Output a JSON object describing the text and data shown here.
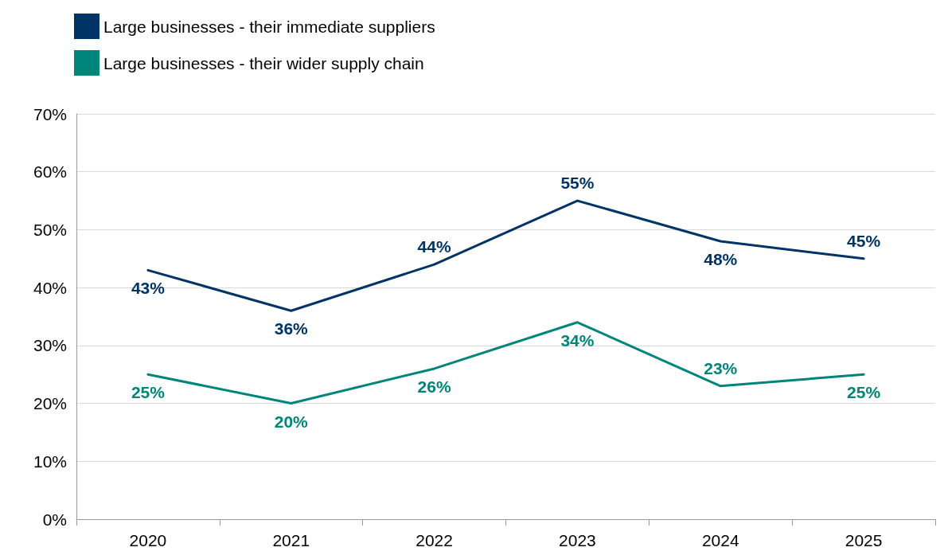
{
  "chart_data": {
    "type": "line",
    "categories": [
      "2020",
      "2021",
      "2022",
      "2023",
      "2024",
      "2025"
    ],
    "series": [
      {
        "name": "Large businesses - their immediate suppliers",
        "color": "#003366",
        "values": [
          43,
          36,
          44,
          55,
          48,
          45
        ],
        "value_labels": [
          "43%",
          "36%",
          "44%",
          "55%",
          "48%",
          "45%"
        ]
      },
      {
        "name": "Large businesses - their wider supply chain",
        "color": "#00857a",
        "values": [
          25,
          20,
          26,
          34,
          23,
          25
        ],
        "value_labels": [
          "25%",
          "20%",
          "26%",
          "34%",
          "23%",
          "25%"
        ]
      }
    ],
    "ylim": [
      0,
      70
    ],
    "yticks": [
      {
        "value": 0,
        "label": "0%"
      },
      {
        "value": 10,
        "label": "10%"
      },
      {
        "value": 20,
        "label": "20%"
      },
      {
        "value": 30,
        "label": "30%"
      },
      {
        "value": 40,
        "label": "40%"
      },
      {
        "value": 50,
        "label": "50%"
      },
      {
        "value": 60,
        "label": "60%"
      },
      {
        "value": 70,
        "label": "70%"
      }
    ],
    "grid": "y",
    "legend": "top left",
    "marker": "none",
    "line_style": "solid"
  }
}
